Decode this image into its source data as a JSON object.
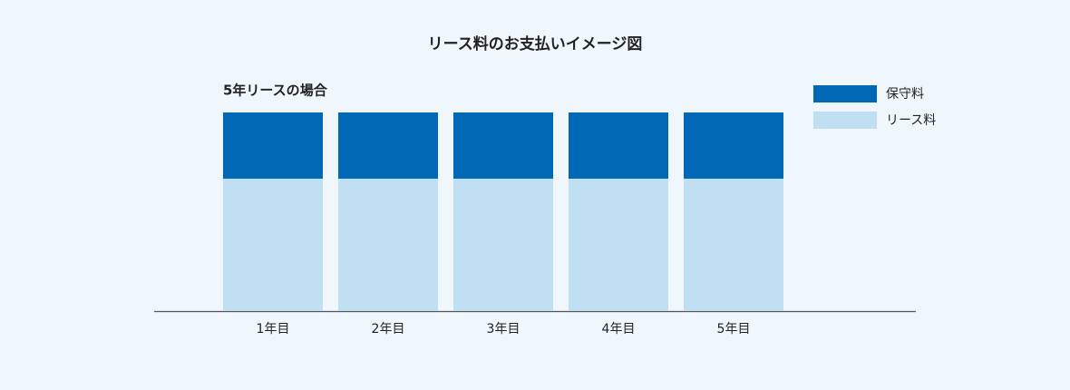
{
  "chart_data": {
    "type": "stacked-bar",
    "title": "リース料のお支払いイメージ図",
    "subtitle": "5年リースの場合",
    "categories": [
      "1年目",
      "2年目",
      "3年目",
      "4年目",
      "5年目"
    ],
    "series": [
      {
        "name": "リース料",
        "color": "#c0dff3",
        "values": [
          2,
          2,
          2,
          2,
          2
        ]
      },
      {
        "name": "保守料",
        "color": "#0068b7",
        "values": [
          1,
          1,
          1,
          1,
          1
        ]
      }
    ]
  }
}
